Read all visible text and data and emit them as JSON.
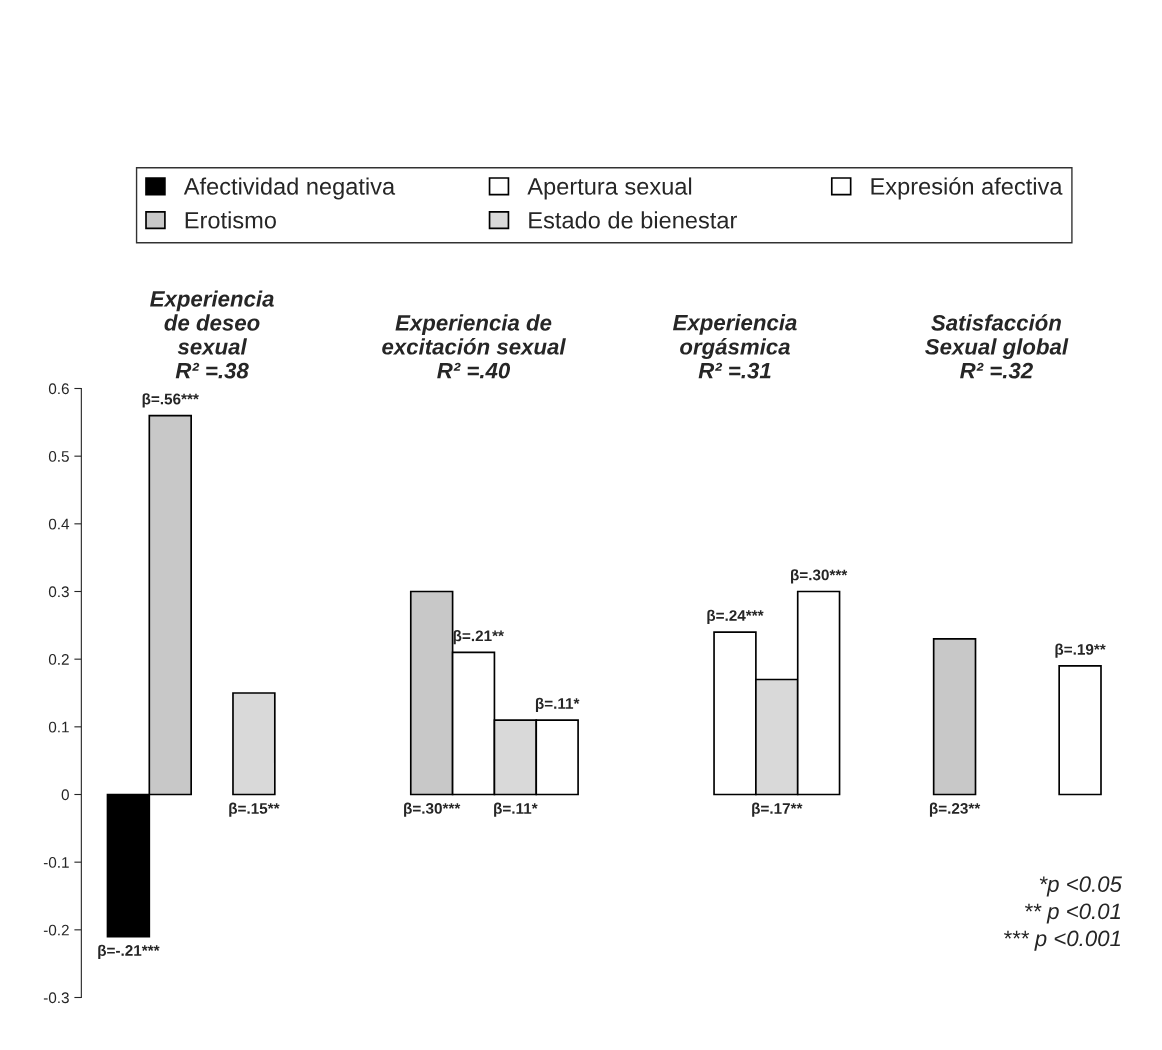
{
  "chart_data": {
    "type": "bar",
    "categories": [
      "Experiencia\nde deseo\nsexual\nR² =.38",
      "Experiencia de\nexcitación sexual\nR² =.40",
      "Experiencia\norgásmica\nR² =.31",
      "Satisfacción\nSexual global\nR² =.32"
    ],
    "series": [
      {
        "name": "Afectividad negativa",
        "color": "#000000",
        "values": [
          -0.21,
          null,
          null,
          null
        ],
        "value_labels": [
          "β=-.21***",
          null,
          null,
          null
        ]
      },
      {
        "name": "Erotismo",
        "color": "#c8c8c8",
        "values": [
          0.56,
          0.3,
          null,
          0.23
        ],
        "value_labels": [
          "β=.56***",
          "β=.30***",
          null,
          "β=.23**"
        ]
      },
      {
        "name": "Apertura sexual",
        "color": "#ffffff",
        "values": [
          null,
          0.21,
          0.24,
          null
        ],
        "value_labels": [
          null,
          "β=.21**",
          "β=.24***",
          null
        ]
      },
      {
        "name": "Estado de bienestar",
        "color": "#d9d9d9",
        "values": [
          0.15,
          0.11,
          0.17,
          null
        ],
        "value_labels": [
          "β=.15**",
          "β=.11*",
          "β=.17**",
          null
        ]
      },
      {
        "name": "Expresión afectiva",
        "color": "#ffffff",
        "values": [
          null,
          0.11,
          0.3,
          0.19
        ],
        "value_labels": [
          null,
          "β=.11*",
          "β=.30***",
          "β=.19**"
        ]
      }
    ],
    "ylim": [
      -0.3,
      0.6
    ],
    "yticks": [
      -0.3,
      -0.2,
      -0.1,
      0,
      0.1,
      0.2,
      0.3,
      0.4,
      0.5,
      0.6
    ],
    "annotations": [
      "*p <0.05\n** p <0.01\n*** p <0.001"
    ],
    "legend": "top",
    "grid": false
  }
}
